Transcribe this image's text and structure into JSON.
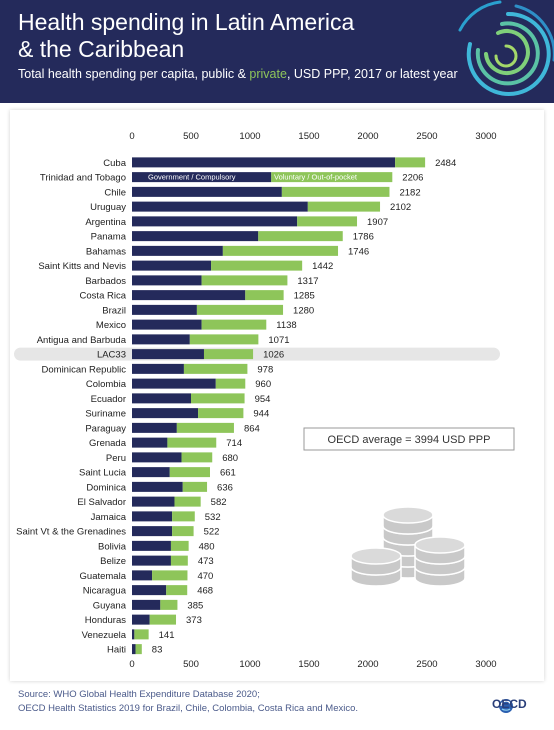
{
  "header": {
    "title_line1": "Health spending in Latin America",
    "title_line2": "& the Caribbean",
    "subtitle_part1": "Total health spending per capita, public & ",
    "subtitle_highlight": "private",
    "subtitle_part2": ", USD PPP, 2017 or latest year"
  },
  "colors": {
    "header_bg": "#242a5b",
    "government": "#242a5b",
    "voluntary": "#8ec55a",
    "highlight_row": "#e6e6e6",
    "subtitle_highlight": "#8ec55a"
  },
  "chart_data": {
    "type": "bar",
    "orientation": "horizontal",
    "stacked": true,
    "xlim": [
      0,
      3000
    ],
    "x_ticks": [
      "0",
      "500",
      "1000",
      "1500",
      "2000",
      "2500",
      "3000"
    ],
    "x_ticks_position": "top and bottom",
    "grid": false,
    "legend_placement": "inside bars, top",
    "categories": [
      "Cuba",
      "Trinidad and Tobago",
      "Chile",
      "Uruguay",
      "Argentina",
      "Panama",
      "Bahamas",
      "Saint Kitts and Nevis",
      "Barbados",
      "Costa Rica",
      "Brazil",
      "Mexico",
      "Antigua and Barbuda",
      "LAC33",
      "Dominican Republic",
      "Colombia",
      "Ecuador",
      "Suriname",
      "Paraguay",
      "Grenada",
      "Peru",
      "Saint Lucia",
      "Dominica",
      "El Salvador",
      "Jamaica",
      "Saint Vt & the Grenadines",
      "Bolivia",
      "Belize",
      "Guatemala",
      "Nicaragua",
      "Guyana",
      "Honduras",
      "Venezuela",
      "Haiti"
    ],
    "highlighted_category": "LAC33",
    "series": [
      {
        "name": "Government / Compulsory",
        "values": [
          2230,
          1180,
          1270,
          1490,
          1400,
          1070,
          770,
          670,
          590,
          960,
          550,
          590,
          490,
          610,
          440,
          710,
          500,
          560,
          380,
          300,
          420,
          320,
          430,
          360,
          340,
          340,
          330,
          330,
          170,
          290,
          240,
          150,
          20,
          30
        ]
      },
      {
        "name": "Voluntary / Out-of-pocket",
        "values": [
          254,
          1026,
          912,
          612,
          507,
          716,
          976,
          772,
          727,
          325,
          730,
          548,
          581,
          416,
          538,
          250,
          454,
          384,
          484,
          414,
          260,
          341,
          206,
          222,
          192,
          182,
          150,
          143,
          300,
          178,
          145,
          223,
          121,
          53
        ]
      }
    ],
    "totals": [
      "2484",
      "2206",
      "2182",
      "2102",
      "1907",
      "1786",
      "1746",
      "1442",
      "1317",
      "1285",
      "1280",
      "1138",
      "1071",
      "1026",
      "978",
      "960",
      "954",
      "944",
      "864",
      "714",
      "680",
      "661",
      "636",
      "582",
      "532",
      "522",
      "480",
      "473",
      "470",
      "468",
      "385",
      "373",
      "141",
      "83"
    ],
    "annotation": "OECD average = 3994 USD PPP"
  },
  "footer": {
    "source_line1": "Source: WHO Global Health Expenditure Database 2020;",
    "source_line2": "OECD Health Statistics 2019 for Brazil, Chile, Colombia, Costa Rica and Mexico.",
    "logo_text": "OECD"
  }
}
